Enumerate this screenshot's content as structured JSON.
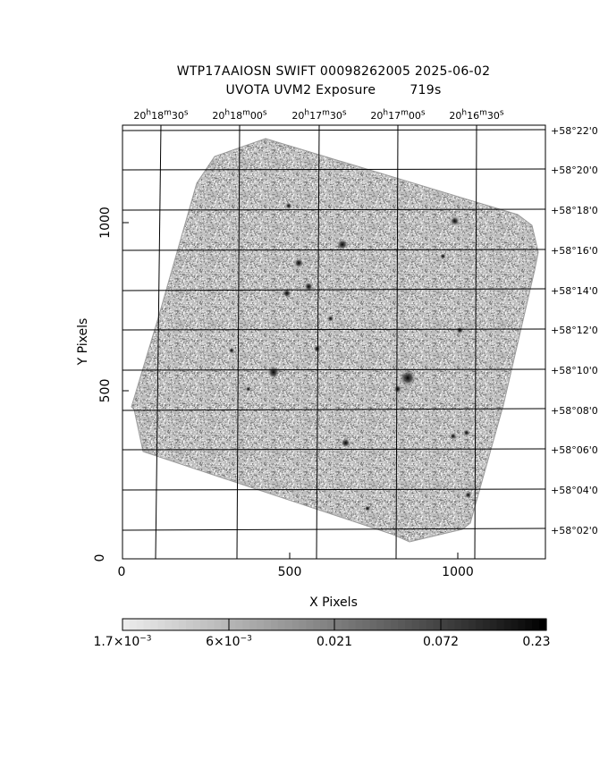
{
  "title": {
    "line1": "WTP17AAIOSN SWIFT 00098262005 2025-06-02",
    "line2": "UVOTA UVM2 Exposure        719s"
  },
  "axes": {
    "xlabel": "X Pixels",
    "ylabel": "Y Pixels",
    "x_ticks": [
      "0",
      "500",
      "1000"
    ],
    "y_ticks": [
      "0",
      "500",
      "1000"
    ],
    "x_range": [
      0,
      1260
    ],
    "y_range": [
      0,
      1290
    ]
  },
  "ra_ticks": [
    {
      "h": "20",
      "m": "18",
      "s": "30"
    },
    {
      "h": "20",
      "m": "18",
      "s": "00"
    },
    {
      "h": "20",
      "m": "17",
      "s": "30"
    },
    {
      "h": "20",
      "m": "17",
      "s": "00"
    },
    {
      "h": "20",
      "m": "16",
      "s": "30"
    }
  ],
  "dec_ticks": [
    "+58°22'0",
    "+58°20'0",
    "+58°18'0",
    "+58°16'0",
    "+58°14'0",
    "+58°12'0",
    "+58°10'0",
    "+58°08'0",
    "+58°06'0",
    "+58°04'0",
    "+58°02'0"
  ],
  "colorbar": {
    "labels": [
      {
        "mant": "1.7×10",
        "exp": "−3"
      },
      {
        "mant": "6×10",
        "exp": "−3"
      },
      {
        "mant": "0.021",
        "exp": ""
      },
      {
        "mant": "0.072",
        "exp": ""
      },
      {
        "mant": "0.23",
        "exp": ""
      }
    ],
    "scale": "log",
    "range": [
      0.0017,
      0.23
    ]
  },
  "sources": [
    {
      "x": 850,
      "y": 538,
      "brightness": 1.0
    },
    {
      "x": 450,
      "y": 555,
      "brightness": 0.7
    },
    {
      "x": 655,
      "y": 935,
      "brightness": 0.6
    },
    {
      "x": 525,
      "y": 880,
      "brightness": 0.5
    },
    {
      "x": 555,
      "y": 810,
      "brightness": 0.45
    },
    {
      "x": 490,
      "y": 790,
      "brightness": 0.45
    },
    {
      "x": 990,
      "y": 1005,
      "brightness": 0.5
    },
    {
      "x": 665,
      "y": 345,
      "brightness": 0.5
    },
    {
      "x": 820,
      "y": 505,
      "brightness": 0.4
    },
    {
      "x": 580,
      "y": 625,
      "brightness": 0.35
    },
    {
      "x": 1005,
      "y": 680,
      "brightness": 0.35
    },
    {
      "x": 985,
      "y": 365,
      "brightness": 0.3
    },
    {
      "x": 1025,
      "y": 375,
      "brightness": 0.3
    },
    {
      "x": 1030,
      "y": 190,
      "brightness": 0.3
    },
    {
      "x": 495,
      "y": 1050,
      "brightness": 0.3
    },
    {
      "x": 325,
      "y": 620,
      "brightness": 0.25
    },
    {
      "x": 730,
      "y": 150,
      "brightness": 0.25
    },
    {
      "x": 955,
      "y": 900,
      "brightness": 0.25
    },
    {
      "x": 620,
      "y": 715,
      "brightness": 0.25
    },
    {
      "x": 375,
      "y": 505,
      "brightness": 0.2
    }
  ]
}
